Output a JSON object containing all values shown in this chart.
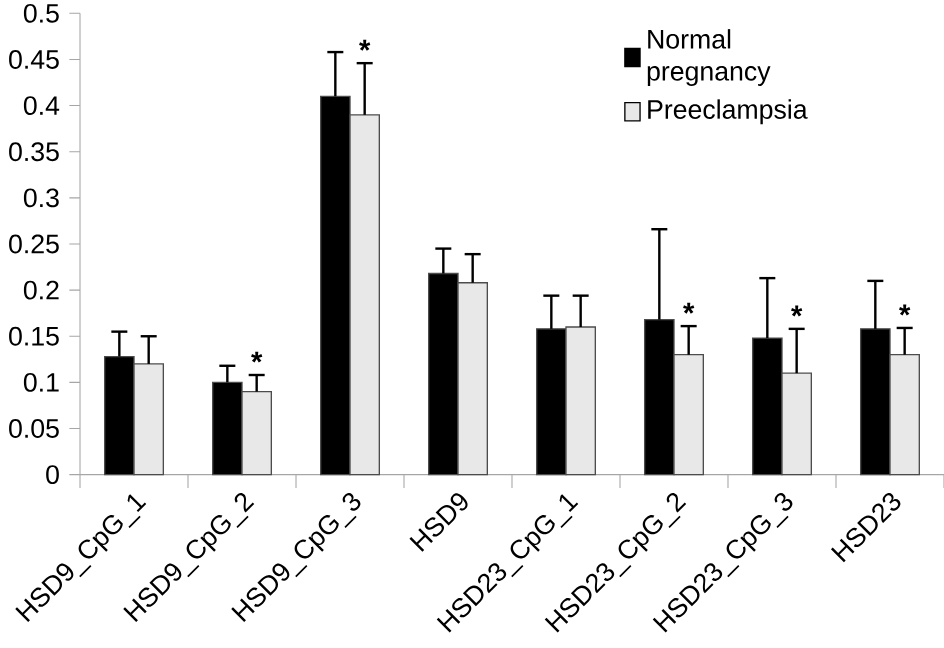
{
  "chart_data": {
    "type": "bar",
    "categories": [
      "HSD9_CpG_1",
      "HSD9_CpG_2",
      "HSD9_CpG_3",
      "HSD9",
      "HSD23_CpG_1",
      "HSD23_CpG_2",
      "HSD23_CpG_3",
      "HSD23"
    ],
    "series": [
      {
        "name": "Normal pregnancy",
        "color": "#000000",
        "values": [
          0.128,
          0.1,
          0.41,
          0.218,
          0.158,
          0.168,
          0.148,
          0.158
        ],
        "errors": [
          [
            0.128,
            0.155
          ],
          [
            0.1,
            0.118
          ],
          [
            0.41,
            0.458
          ],
          [
            0.218,
            0.245
          ],
          [
            0.158,
            0.194
          ],
          [
            0.168,
            0.266
          ],
          [
            0.148,
            0.213
          ],
          [
            0.158,
            0.21
          ]
        ]
      },
      {
        "name": "Preeclampsia",
        "color": "#e8e8e8",
        "values": [
          0.12,
          0.09,
          0.39,
          0.208,
          0.16,
          0.13,
          0.11,
          0.13
        ],
        "errors": [
          [
            0.12,
            0.15
          ],
          [
            0.09,
            0.108
          ],
          [
            0.39,
            0.446
          ],
          [
            0.208,
            0.239
          ],
          [
            0.16,
            0.194
          ],
          [
            0.13,
            0.161
          ],
          [
            0.11,
            0.158
          ],
          [
            0.13,
            0.159
          ]
        ]
      }
    ],
    "ylim": [
      0,
      0.5
    ],
    "yticks": [
      0,
      0.05,
      0.1,
      0.15,
      0.2,
      0.25,
      0.3,
      0.35,
      0.4,
      0.45,
      0.5
    ],
    "annotations": [
      {
        "text": "*",
        "x": "HSD9_CpG_2",
        "y": 0.108
      },
      {
        "text": "*",
        "x": "HSD9_CpG_3",
        "y": 0.446
      },
      {
        "text": "*",
        "x": "HSD23_CpG_2",
        "y": 0.161
      },
      {
        "text": "*",
        "x": "HSD23_CpG_3",
        "y": 0.158
      },
      {
        "text": "*",
        "x": "HSD23",
        "y": 0.159
      }
    ],
    "grid": false,
    "legend": "top right"
  }
}
